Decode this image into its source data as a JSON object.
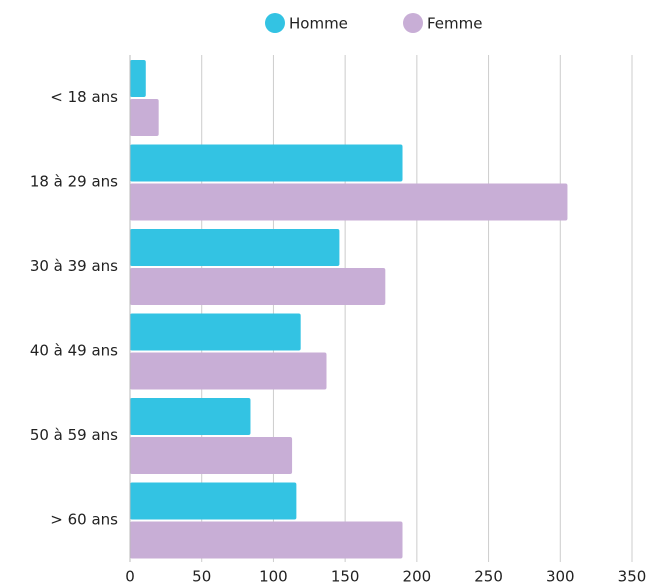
{
  "chart_data": {
    "type": "bar",
    "orientation": "horizontal",
    "categories": [
      "< 18 ans",
      "18 à 29 ans",
      "30 à 39 ans",
      "40 à 49 ans",
      "50 à 59 ans",
      "> 60 ans"
    ],
    "series": [
      {
        "name": "Homme",
        "color": "#33c3e3",
        "values": [
          11,
          190,
          146,
          119,
          84,
          116
        ]
      },
      {
        "name": "Femme",
        "color": "#c8aed6",
        "values": [
          20,
          305,
          178,
          137,
          113,
          190
        ]
      }
    ],
    "xlim": [
      0,
      350
    ],
    "xticks": [
      0,
      50,
      100,
      150,
      200,
      250,
      300,
      350
    ],
    "grid": true,
    "legend": "top"
  }
}
